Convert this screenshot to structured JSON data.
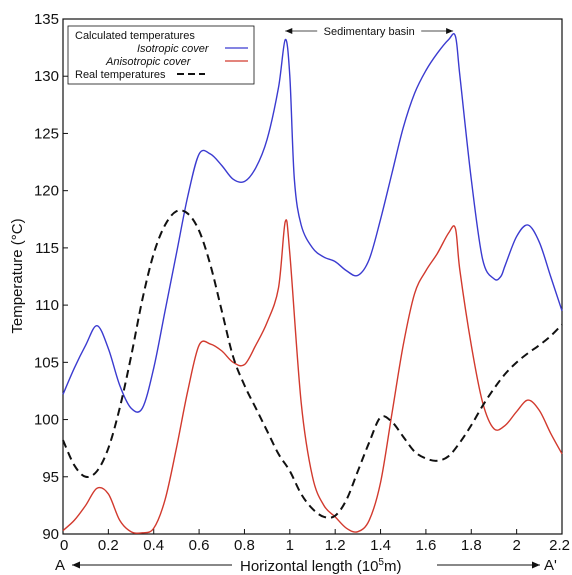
{
  "chart_data": {
    "type": "line",
    "xlabel": "Horizontal length (10^5 m)",
    "ylabel": "Temperature (°C)",
    "xlim": [
      0,
      2.2
    ],
    "ylim": [
      90,
      135
    ],
    "x_ticks": [
      "0",
      "0.2",
      "0.4",
      "0.6",
      "0.8",
      "1",
      "1.2",
      "1.4",
      "1.6",
      "1.8",
      "2",
      "2.2"
    ],
    "y_ticks": [
      "90",
      "95",
      "100",
      "105",
      "110",
      "115",
      "120",
      "125",
      "130",
      "135"
    ],
    "grid": false,
    "legend_position": "top-left",
    "legend": {
      "header": "Calculated temperatures",
      "real_label": "Real temperatures"
    },
    "annotations": {
      "basin_label": "Sedimentary basin",
      "basin_range": [
        0.98,
        1.72
      ],
      "section_start": "A",
      "section_end": "A'"
    },
    "colors": {
      "isotropic": "#3b3bd0",
      "anisotropic": "#d23a2e",
      "real": "#111111"
    },
    "series": [
      {
        "name": "Isotropic cover",
        "style": "solid",
        "x": [
          0,
          0.05,
          0.1,
          0.15,
          0.2,
          0.25,
          0.3,
          0.35,
          0.4,
          0.45,
          0.5,
          0.55,
          0.6,
          0.65,
          0.7,
          0.75,
          0.8,
          0.85,
          0.9,
          0.95,
          0.98,
          1.0,
          1.02,
          1.05,
          1.1,
          1.15,
          1.2,
          1.25,
          1.3,
          1.35,
          1.4,
          1.45,
          1.5,
          1.55,
          1.6,
          1.65,
          1.7,
          1.73,
          1.75,
          1.8,
          1.85,
          1.9,
          1.93,
          1.95,
          2.0,
          2.05,
          2.1,
          2.15,
          2.2
        ],
        "y": [
          102.2,
          104.5,
          106.5,
          108.2,
          106.2,
          103.0,
          101.0,
          101.0,
          104.5,
          109.5,
          114.5,
          119.5,
          123.2,
          123.2,
          122.2,
          121.0,
          120.8,
          122.0,
          124.5,
          129.0,
          133.2,
          130.0,
          121.0,
          117.0,
          115.0,
          114.2,
          113.8,
          113.0,
          112.6,
          114.0,
          117.5,
          121.5,
          125.5,
          128.5,
          130.5,
          132.0,
          133.2,
          133.5,
          130.0,
          121.0,
          114.0,
          112.3,
          112.5,
          113.5,
          116.0,
          117.0,
          115.5,
          112.5,
          109.5
        ]
      },
      {
        "name": "Anisotropic cover",
        "style": "solid",
        "x": [
          0,
          0.05,
          0.1,
          0.15,
          0.2,
          0.25,
          0.3,
          0.35,
          0.4,
          0.45,
          0.5,
          0.55,
          0.6,
          0.65,
          0.7,
          0.75,
          0.8,
          0.85,
          0.9,
          0.95,
          0.98,
          1.0,
          1.05,
          1.1,
          1.15,
          1.2,
          1.25,
          1.3,
          1.35,
          1.4,
          1.45,
          1.5,
          1.55,
          1.6,
          1.65,
          1.7,
          1.73,
          1.75,
          1.8,
          1.85,
          1.9,
          1.95,
          2.0,
          2.05,
          2.1,
          2.15,
          2.2
        ],
        "y": [
          90.3,
          91.2,
          92.5,
          94.0,
          93.5,
          91.2,
          90.2,
          90.1,
          90.5,
          93.0,
          97.5,
          102.5,
          106.5,
          106.6,
          106.0,
          105.0,
          104.8,
          106.5,
          108.5,
          111.5,
          117.3,
          114.5,
          101.5,
          95.0,
          92.5,
          91.5,
          90.5,
          90.2,
          91.2,
          94.5,
          100.5,
          106.5,
          111.0,
          113.0,
          114.5,
          116.3,
          116.7,
          113.0,
          106.5,
          101.5,
          99.2,
          99.5,
          100.7,
          101.7,
          100.8,
          98.8,
          97.0
        ]
      },
      {
        "name": "Real temperatures",
        "style": "dashed",
        "x": [
          0,
          0.05,
          0.1,
          0.15,
          0.2,
          0.25,
          0.3,
          0.35,
          0.4,
          0.45,
          0.5,
          0.55,
          0.6,
          0.65,
          0.7,
          0.75,
          0.8,
          0.85,
          0.9,
          0.95,
          1.0,
          1.05,
          1.1,
          1.15,
          1.2,
          1.25,
          1.3,
          1.35,
          1.4,
          1.45,
          1.5,
          1.55,
          1.6,
          1.65,
          1.7,
          1.75,
          1.8,
          1.85,
          1.9,
          1.95,
          2.0,
          2.05,
          2.1,
          2.15,
          2.2
        ],
        "y": [
          98.2,
          96.0,
          95.0,
          95.5,
          97.5,
          101.0,
          105.5,
          110.5,
          114.5,
          117.0,
          118.2,
          118.0,
          116.5,
          113.5,
          109.5,
          105.5,
          103.0,
          101.0,
          99.0,
          97.0,
          95.5,
          93.5,
          92.2,
          91.5,
          91.6,
          93.0,
          95.5,
          98.0,
          100.2,
          99.8,
          98.5,
          97.2,
          96.6,
          96.4,
          96.8,
          98.0,
          99.5,
          101.2,
          102.7,
          104.0,
          105.0,
          105.8,
          106.5,
          107.3,
          108.3
        ]
      }
    ]
  }
}
